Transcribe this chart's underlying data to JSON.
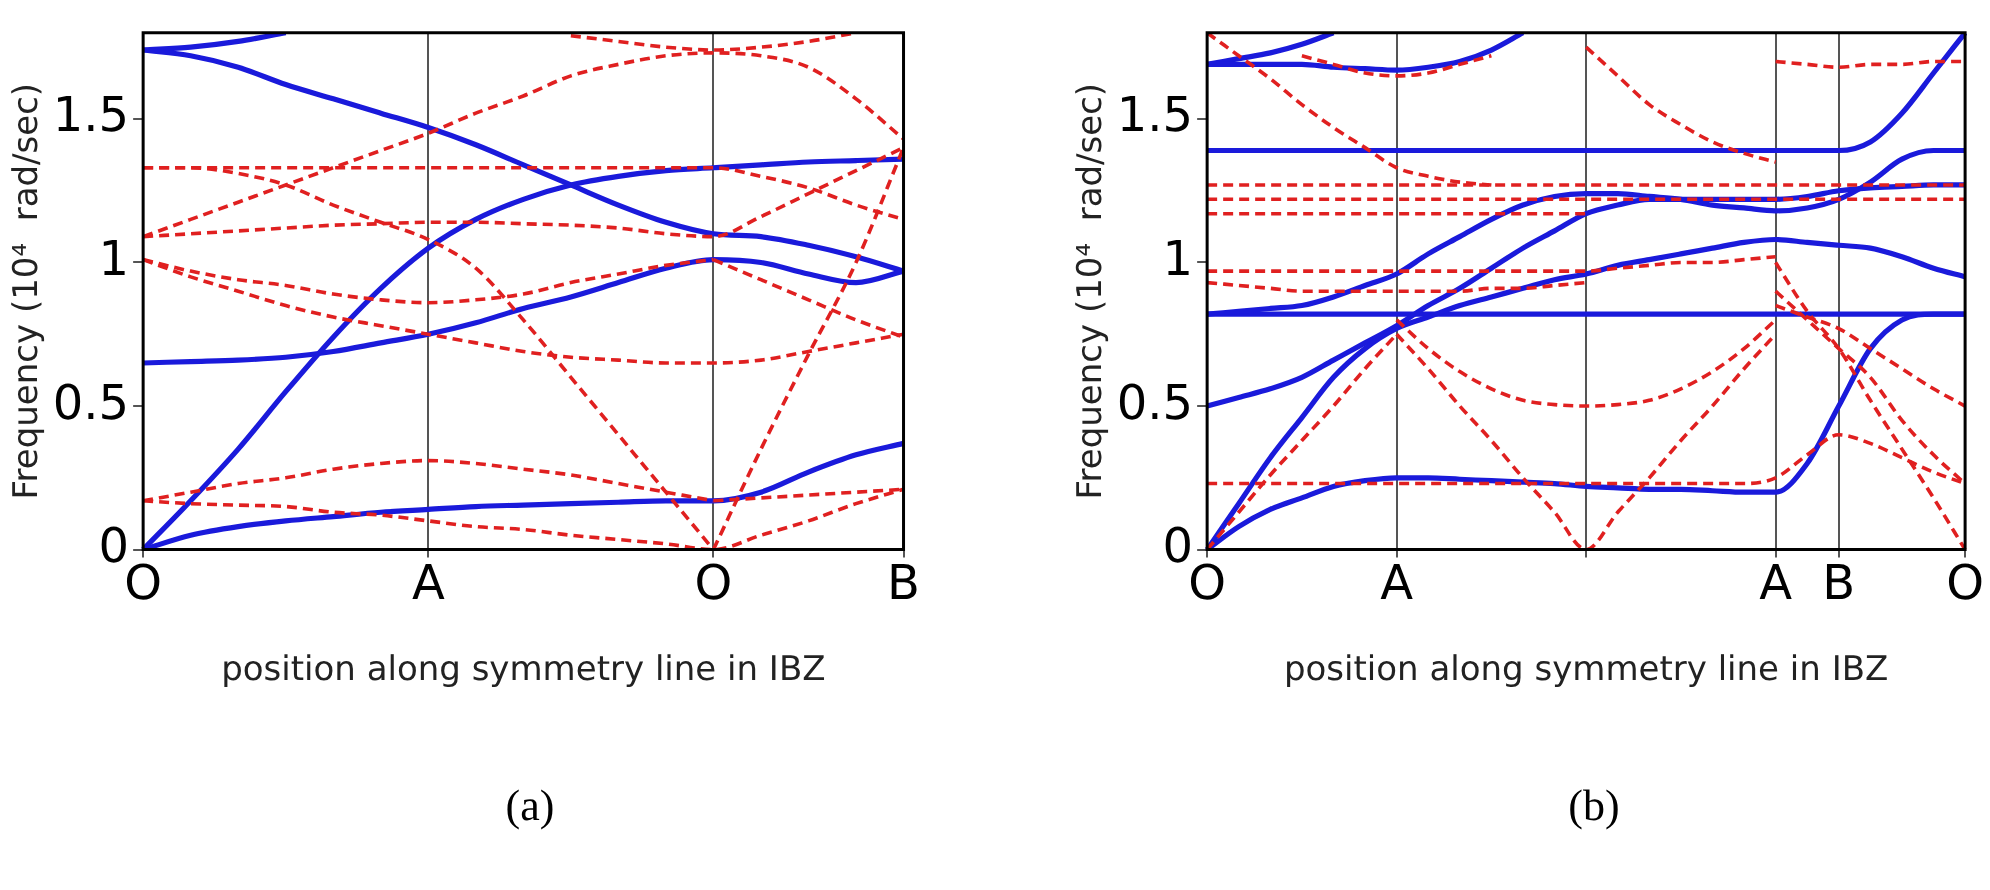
{
  "chart_data": [
    {
      "type": "line",
      "xlabel": "position along symmetry line in IBZ",
      "ylabel": "Frequency (10⁴  rad/sec)",
      "annotations": [
        "(a)"
      ],
      "categories": [
        "O",
        null,
        null,
        null,
        null,
        null,
        "A",
        null,
        null,
        null,
        null,
        null,
        "O",
        null,
        null,
        null,
        "B"
      ],
      "ylim": [
        0,
        1.8
      ],
      "yticks": [
        0,
        0.5,
        1,
        1.5
      ],
      "grid": "x",
      "legend": false,
      "marker": "none",
      "series": [
        {
          "color": "#e02020",
          "line_style": "dashed",
          "values": [
            0.17,
            0.2,
            0.23,
            0.25,
            0.28,
            0.3,
            0.31,
            0.3,
            0.28,
            0.26,
            0.23,
            0.2,
            0.17,
            null,
            null,
            null,
            null
          ]
        },
        {
          "color": "#e02020",
          "line_style": "dashed",
          "values": [
            null,
            null,
            null,
            null,
            null,
            null,
            null,
            null,
            null,
            null,
            null,
            null,
            0.17,
            0.18,
            0.19,
            0.2,
            0.21
          ]
        },
        {
          "color": "#e02020",
          "line_style": "dashed",
          "values": [
            0.17,
            0.16,
            0.155,
            0.15,
            0.13,
            0.12,
            0.1,
            0.08,
            0.07,
            0.05,
            0.035,
            0.02,
            0,
            0.05,
            0.1,
            0.16,
            0.21
          ]
        },
        {
          "color": "#e02020",
          "line_style": "dashed",
          "values": [
            null,
            null,
            null,
            null,
            null,
            null,
            null,
            null,
            null,
            null,
            null,
            null,
            0,
            0.35,
            0.68,
            1.0,
            1.4
          ]
        },
        {
          "color": "#e02020",
          "line_style": "dashed",
          "values": [
            1.33,
            1.33,
            1.31,
            1.27,
            1.2,
            1.14,
            1.08,
            0.98,
            0.8,
            0.6,
            0.4,
            0.2,
            0,
            null,
            null,
            null,
            null
          ]
        },
        {
          "color": "#e02020",
          "line_style": "dashed",
          "values": [
            1.33,
            1.33,
            1.33,
            1.33,
            1.33,
            1.33,
            1.33,
            1.33,
            1.33,
            1.33,
            1.33,
            1.33,
            1.33,
            1.3,
            1.26,
            1.2,
            1.15
          ]
        },
        {
          "color": "#e02020",
          "line_style": "dashed",
          "values": [
            1.09,
            1.15,
            1.21,
            1.27,
            1.33,
            1.39,
            1.45,
            1.52,
            1.58,
            1.65,
            1.69,
            1.72,
            1.73,
            1.72,
            1.68,
            1.57,
            1.43
          ]
        },
        {
          "color": "#e02020",
          "line_style": "dashed",
          "values": [
            1.09,
            1.1,
            1.11,
            1.12,
            1.13,
            1.135,
            1.14,
            1.14,
            1.135,
            1.13,
            1.12,
            1.1,
            1.09,
            1.16,
            1.24,
            1.32,
            1.4
          ]
        },
        {
          "color": "#e02020",
          "line_style": "dashed",
          "values": [
            1.01,
            0.97,
            0.94,
            0.92,
            0.89,
            0.87,
            0.86,
            0.87,
            0.89,
            0.93,
            0.96,
            0.99,
            1.01,
            null,
            null,
            null,
            null
          ]
        },
        {
          "color": "#e02020",
          "line_style": "dashed",
          "values": [
            null,
            null,
            null,
            null,
            null,
            null,
            null,
            null,
            null,
            null,
            null,
            null,
            1.01,
            0.94,
            0.87,
            0.8,
            0.74
          ]
        },
        {
          "color": "#e02020",
          "line_style": "dashed",
          "values": [
            1.01,
            0.95,
            0.9,
            0.85,
            0.81,
            0.78,
            0.75,
            0.72,
            0.69,
            0.67,
            0.66,
            0.65,
            0.65,
            0.66,
            0.69,
            0.72,
            0.75
          ]
        },
        {
          "color": "#e02020",
          "line_style": "dashed",
          "values": [
            null,
            null,
            null,
            null,
            null,
            null,
            null,
            null,
            null,
            1.79,
            1.77,
            1.75,
            1.74,
            1.75,
            1.77,
            1.8,
            null
          ]
        },
        {
          "color": "#1a1adb",
          "line_style": "solid",
          "values": [
            0,
            0.05,
            0.08,
            0.1,
            0.115,
            0.13,
            0.14,
            0.15,
            0.155,
            0.16,
            0.165,
            0.17,
            0.17,
            0.2,
            0.27,
            0.33,
            0.37
          ]
        },
        {
          "color": "#1a1adb",
          "line_style": "solid",
          "values": [
            0,
            0.17,
            0.35,
            0.55,
            0.74,
            0.91,
            1.05,
            1.15,
            1.22,
            1.27,
            1.3,
            1.32,
            1.33,
            1.34,
            1.35,
            1.355,
            1.36
          ]
        },
        {
          "color": "#1a1adb",
          "line_style": "solid",
          "values": [
            0.65,
            0.655,
            0.66,
            0.67,
            0.69,
            0.72,
            0.75,
            0.79,
            0.84,
            0.88,
            0.93,
            0.98,
            1.01,
            1.0,
            0.96,
            0.93,
            0.97
          ]
        },
        {
          "color": "#1a1adb",
          "line_style": "solid",
          "values": [
            1.74,
            1.72,
            1.68,
            1.62,
            1.57,
            1.52,
            1.47,
            1.41,
            1.34,
            1.27,
            1.2,
            1.14,
            1.1,
            1.09,
            1.06,
            1.02,
            0.97
          ]
        },
        {
          "color": "#1a1adb",
          "line_style": "solid",
          "values": [
            1.74,
            1.75,
            1.77,
            1.8,
            null,
            null,
            null,
            null,
            null,
            null,
            null,
            null,
            null,
            null,
            null,
            null,
            null
          ]
        }
      ]
    },
    {
      "type": "line",
      "xlabel": "position along symmetry line in IBZ",
      "ylabel": "Frequency (10⁴  rad/sec)",
      "annotations": [
        "(b)"
      ],
      "categories": [
        "O",
        null,
        null,
        null,
        null,
        null,
        "A",
        null,
        null,
        null,
        null,
        null,
        null,
        null,
        null,
        null,
        null,
        null,
        "A",
        null,
        "B",
        null,
        null,
        null,
        "O"
      ],
      "ylim": [
        0,
        1.8
      ],
      "yticks": [
        0,
        0.5,
        1,
        1.5
      ],
      "grid": "x",
      "legend": false,
      "marker": "none",
      "series": [
        {
          "color": "#e02020",
          "line_style": "dashed",
          "values": [
            0.23,
            0.23,
            0.23,
            0.23,
            0.23,
            0.23,
            0.23,
            0.23,
            0.23,
            0.23,
            0.23,
            0.23,
            0.23,
            0.23,
            0.23,
            0.23,
            0.23,
            0.23,
            0.25,
            0.33,
            0.4,
            0.37,
            0.32,
            0.27,
            0.23
          ]
        },
        {
          "color": "#e02020",
          "line_style": "dashed",
          "values": [
            0,
            0.13,
            0.26,
            0.38,
            0.5,
            0.63,
            0.75,
            null,
            null,
            null,
            null,
            null,
            null,
            null,
            null,
            null,
            null,
            null,
            null,
            null,
            null,
            null,
            null,
            null,
            null
          ]
        },
        {
          "color": "#e02020",
          "line_style": "dashed",
          "values": [
            null,
            null,
            null,
            null,
            null,
            null,
            0.75,
            0.63,
            0.5,
            0.38,
            0.25,
            0.13,
            0,
            0.13,
            0.25,
            0.38,
            0.5,
            0.63,
            0.75,
            null,
            null,
            null,
            null,
            null,
            null
          ]
        },
        {
          "color": "#e02020",
          "line_style": "dashed",
          "values": [
            null,
            null,
            null,
            null,
            null,
            null,
            0.8,
            0.7,
            0.62,
            0.56,
            0.52,
            0.505,
            0.5,
            0.505,
            0.52,
            0.56,
            0.62,
            0.7,
            0.8,
            null,
            null,
            null,
            null,
            null,
            null
          ]
        },
        {
          "color": "#e02020",
          "line_style": "dashed",
          "values": [
            1.8,
            1.72,
            1.64,
            1.55,
            1.47,
            1.4,
            1.33,
            1.3,
            1.28,
            1.27,
            null,
            null,
            null,
            null,
            null,
            null,
            null,
            null,
            null,
            null,
            null,
            null,
            null,
            null,
            null
          ]
        },
        {
          "color": "#e02020",
          "line_style": "dashed",
          "values": [
            null,
            null,
            null,
            1.72,
            1.69,
            1.66,
            1.65,
            1.66,
            1.69,
            1.72,
            null,
            null,
            null,
            null,
            null,
            null,
            null,
            null,
            null,
            null,
            null,
            null,
            null,
            null,
            null
          ]
        },
        {
          "color": "#e02020",
          "line_style": "dashed",
          "values": [
            1.27,
            1.27,
            1.27,
            1.27,
            1.27,
            1.27,
            1.27,
            1.27,
            1.27,
            1.27,
            1.27,
            1.27,
            1.27,
            1.27,
            1.27,
            1.27,
            1.27,
            1.27,
            1.27,
            1.27,
            1.27,
            1.27,
            1.27,
            1.27,
            1.27
          ]
        },
        {
          "color": "#e02020",
          "line_style": "dashed",
          "values": [
            1.22,
            1.22,
            1.22,
            1.22,
            1.22,
            1.22,
            1.22,
            1.22,
            1.22,
            1.22,
            1.22,
            1.22,
            1.22,
            1.22,
            1.22,
            1.22,
            1.22,
            1.22,
            1.22,
            1.22,
            1.22,
            1.22,
            1.22,
            1.22,
            1.22
          ]
        },
        {
          "color": "#e02020",
          "line_style": "dashed",
          "values": [
            1.17,
            1.17,
            1.17,
            1.17,
            1.17,
            1.17,
            1.17,
            1.17,
            1.17,
            1.17,
            1.17,
            1.17,
            1.17,
            null,
            null,
            null,
            null,
            null,
            null,
            null,
            null,
            null,
            null,
            null,
            null
          ]
        },
        {
          "color": "#e02020",
          "line_style": "dashed",
          "values": [
            0.97,
            0.97,
            0.97,
            0.97,
            0.97,
            0.97,
            0.97,
            0.97,
            0.97,
            0.97,
            0.97,
            0.97,
            0.97,
            0.98,
            0.99,
            1.0,
            1.0,
            1.01,
            1.02,
            null,
            null,
            null,
            null,
            null,
            null
          ]
        },
        {
          "color": "#e02020",
          "line_style": "dashed",
          "values": [
            0.93,
            0.92,
            0.91,
            0.9,
            0.9,
            0.9,
            0.9,
            0.9,
            0.9,
            0.91,
            0.91,
            0.92,
            0.93,
            null,
            null,
            null,
            null,
            null,
            null,
            null,
            null,
            null,
            null,
            null,
            null
          ]
        },
        {
          "color": "#e02020",
          "line_style": "dashed",
          "values": [
            null,
            null,
            null,
            null,
            null,
            null,
            null,
            null,
            null,
            null,
            null,
            null,
            null,
            null,
            null,
            null,
            null,
            null,
            1.7,
            1.69,
            1.68,
            1.69,
            1.69,
            1.7,
            1.7
          ]
        },
        {
          "color": "#e02020",
          "line_style": "dashed",
          "values": [
            null,
            null,
            null,
            null,
            null,
            null,
            null,
            null,
            null,
            null,
            null,
            null,
            null,
            null,
            null,
            null,
            null,
            null,
            1.0,
            0.83,
            0.7,
            0.52,
            0.35,
            0.18,
            0
          ]
        },
        {
          "color": "#e02020",
          "line_style": "dashed",
          "values": [
            null,
            null,
            null,
            null,
            null,
            null,
            null,
            null,
            null,
            null,
            null,
            null,
            null,
            null,
            null,
            null,
            null,
            null,
            0.9,
            0.8,
            0.7,
            0.6,
            0.45,
            0.33,
            0.23
          ]
        },
        {
          "color": "#e02020",
          "line_style": "dashed",
          "values": [
            null,
            null,
            null,
            null,
            null,
            null,
            null,
            null,
            null,
            null,
            null,
            null,
            null,
            null,
            null,
            null,
            null,
            null,
            0.85,
            0.81,
            0.77,
            0.7,
            0.63,
            0.56,
            0.5
          ]
        },
        {
          "color": "#e02020",
          "line_style": "dashed",
          "values": [
            null,
            null,
            null,
            null,
            null,
            null,
            null,
            null,
            null,
            null,
            null,
            null,
            1.75,
            1.65,
            1.55,
            1.48,
            1.42,
            1.38,
            1.35,
            null,
            null,
            null,
            null,
            null,
            null
          ]
        },
        {
          "color": "#1a1adb",
          "line_style": "solid",
          "values": [
            0,
            0.08,
            0.14,
            0.18,
            0.22,
            0.24,
            0.25,
            0.25,
            0.245,
            0.24,
            0.235,
            0.23,
            0.22,
            0.215,
            0.21,
            0.21,
            0.205,
            0.2,
            0.2,
            0.3,
            0.5,
            0.7,
            0.8,
            0.82,
            0.82
          ]
        },
        {
          "color": "#1a1adb",
          "line_style": "solid",
          "values": [
            0,
            0.16,
            0.32,
            0.46,
            0.6,
            0.7,
            0.77,
            0.81,
            0.85,
            0.88,
            0.91,
            0.94,
            0.96,
            0.99,
            1.01,
            1.03,
            1.05,
            1.07,
            1.08,
            1.07,
            1.06,
            1.05,
            1.02,
            0.98,
            0.95
          ]
        },
        {
          "color": "#1a1adb",
          "line_style": "solid",
          "values": [
            0.5,
            0.53,
            0.56,
            0.6,
            0.66,
            0.72,
            0.78,
            0.85,
            0.91,
            0.98,
            1.05,
            1.11,
            1.17,
            1.2,
            1.22,
            1.22,
            1.22,
            1.22,
            1.22,
            1.23,
            1.25,
            1.26,
            1.265,
            1.27,
            1.27
          ]
        },
        {
          "color": "#1a1adb",
          "line_style": "solid",
          "values": [
            0.82,
            0.83,
            0.84,
            0.85,
            0.88,
            0.92,
            0.96,
            1.03,
            1.09,
            1.15,
            1.2,
            1.23,
            1.24,
            1.24,
            1.23,
            1.22,
            1.2,
            1.19,
            1.18,
            1.19,
            1.22,
            1.28,
            1.36,
            1.39,
            1.39
          ]
        },
        {
          "color": "#1a1adb",
          "line_style": "solid",
          "values": [
            0.82,
            0.82,
            0.82,
            0.82,
            0.82,
            0.82,
            0.82,
            0.82,
            0.82,
            0.82,
            0.82,
            0.82,
            0.82,
            0.82,
            0.82,
            0.82,
            0.82,
            0.82,
            0.82,
            0.82,
            0.82,
            0.82,
            0.82,
            0.82,
            0.82
          ]
        },
        {
          "color": "#1a1adb",
          "line_style": "solid",
          "values": [
            1.39,
            1.39,
            1.39,
            1.39,
            1.39,
            1.39,
            1.39,
            1.39,
            1.39,
            1.39,
            1.39,
            1.39,
            1.39,
            1.39,
            1.39,
            1.39,
            1.39,
            1.39,
            1.39,
            1.39,
            1.39,
            1.42,
            1.52,
            1.66,
            1.8
          ]
        },
        {
          "color": "#1a1adb",
          "line_style": "solid",
          "values": [
            1.69,
            1.69,
            1.69,
            1.69,
            1.68,
            1.675,
            1.67,
            1.68,
            1.7,
            1.74,
            1.8,
            null,
            null,
            null,
            null,
            null,
            null,
            null,
            null,
            null,
            null,
            null,
            null,
            null,
            null
          ]
        },
        {
          "color": "#1a1adb",
          "line_style": "solid",
          "values": [
            1.69,
            1.71,
            1.73,
            1.76,
            1.8,
            null,
            null,
            null,
            null,
            null,
            null,
            null,
            null,
            null,
            null,
            null,
            null,
            null,
            null,
            null,
            null,
            null,
            null,
            null,
            null
          ]
        }
      ]
    }
  ]
}
